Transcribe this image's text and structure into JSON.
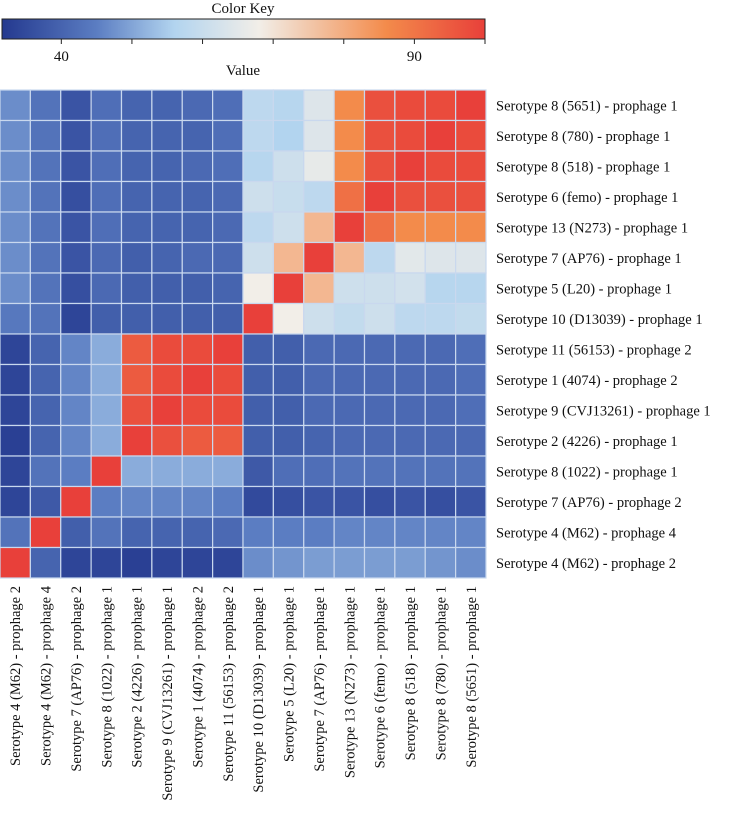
{
  "chart_data": {
    "type": "heatmap",
    "title": "Color Key",
    "colorbar": {
      "label": "Value",
      "range": [
        31.6,
        100
      ],
      "tick_values": [
        40,
        50,
        60,
        70,
        80,
        90,
        100
      ],
      "tick_labels": [
        {
          "value": 40,
          "text": "40"
        },
        {
          "value": 90,
          "text": "90"
        }
      ],
      "stops": [
        {
          "value": 31.6,
          "color": "#24398f"
        },
        {
          "value": 45,
          "color": "#5b7dc2"
        },
        {
          "value": 56,
          "color": "#b2d4ef"
        },
        {
          "value": 68,
          "color": "#f2eee8"
        },
        {
          "value": 86,
          "color": "#f38b4b"
        },
        {
          "value": 100,
          "color": "#e8403a"
        }
      ]
    },
    "rows": [
      "Serotype 8 (5651) - prophage 1",
      "Serotype 8 (780) - prophage 1",
      "Serotype 8 (518) - prophage 1",
      "Serotype 6 (femo) - prophage 1",
      "Serotype 13 (N273) - prophage 1",
      "Serotype 7 (AP76) - prophage 1",
      "Serotype 5 (L20) - prophage 1",
      "Serotype 10 (D13039) - prophage 1",
      "Serotype 11 (56153) - prophage 2",
      "Serotype 1 (4074) - prophage 2",
      "Serotype 9 (CVJ13261) - prophage 1",
      "Serotype 2 (4226) - prophage 1",
      "Serotype 8 (1022) - prophage 1",
      "Serotype 7 (AP76) - prophage 2",
      "Serotype 4 (M62) - prophage 4",
      "Serotype 4 (M62) - prophage 2"
    ],
    "columns": [
      "Serotype 4 (M62) - prophage 2",
      "Serotype 4 (M62) - prophage 4",
      "Serotype 7 (AP76) - prophage 2",
      "Serotype 8 (1022) - prophage 1",
      "Serotype 2 (4226) - prophage 1",
      "Serotype 9 (CVJ13261) - prophage 1",
      "Serotype 1 (4074) - prophage 2",
      "Serotype 11 (56153) - prophage 2",
      "Serotype 10 (D13039) - prophage 1",
      "Serotype 5 (L20) - prophage 1",
      "Serotype 7 (AP76) - prophage 1",
      "Serotype 13 (N273) - prophage 1",
      "Serotype 6 (femo) - prophage 1",
      "Serotype 8 (518) - prophage 1",
      "Serotype 8 (780) - prophage 1",
      "Serotype 8 (5651) - prophage 1"
    ],
    "values": [
      [
        47,
        43,
        37,
        42,
        40,
        40,
        41,
        42,
        58,
        57,
        64,
        86,
        97,
        98,
        98,
        100
      ],
      [
        47,
        43,
        37,
        42,
        40,
        40,
        40,
        42,
        58,
        56,
        64,
        86,
        97,
        98,
        100,
        98
      ],
      [
        47,
        43,
        37,
        42,
        40,
        40,
        41,
        42,
        57,
        61,
        66,
        86,
        97,
        100,
        98,
        98
      ],
      [
        47,
        43,
        36,
        42,
        40,
        40,
        40,
        41,
        61,
        60,
        58,
        91,
        100,
        97,
        97,
        97
      ],
      [
        47,
        43,
        37,
        42,
        40,
        40,
        40,
        41,
        58,
        61,
        78,
        100,
        91,
        86,
        86,
        86
      ],
      [
        47,
        43,
        37,
        41,
        39,
        40,
        41,
        41,
        61,
        78,
        100,
        78,
        58,
        65,
        64,
        64
      ],
      [
        47,
        43,
        36,
        41,
        39,
        39,
        39,
        40,
        68,
        100,
        78,
        61,
        61,
        62,
        57,
        57
      ],
      [
        44,
        43,
        34,
        39,
        39,
        39,
        39,
        39,
        100,
        68,
        61,
        59,
        61,
        58,
        58,
        59
      ],
      [
        34,
        40,
        46,
        51,
        95,
        98,
        98,
        100,
        39,
        39,
        41,
        41,
        41,
        41,
        41,
        42
      ],
      [
        34,
        40,
        46,
        51,
        95,
        98,
        100,
        98,
        39,
        39,
        41,
        41,
        41,
        41,
        41,
        42
      ],
      [
        34,
        40,
        46,
        51,
        97,
        100,
        98,
        98,
        39,
        39,
        41,
        41,
        41,
        41,
        41,
        42
      ],
      [
        33,
        40,
        46,
        51,
        100,
        97,
        95,
        95,
        39,
        39,
        40,
        41,
        41,
        41,
        41,
        41
      ],
      [
        34,
        43,
        45,
        100,
        51,
        51,
        51,
        51,
        38,
        42,
        42,
        43,
        43,
        43,
        43,
        43
      ],
      [
        34,
        38,
        100,
        45,
        46,
        46,
        46,
        45,
        35,
        36,
        37,
        37,
        36,
        37,
        36,
        37
      ],
      [
        43,
        100,
        39,
        43,
        40,
        40,
        40,
        41,
        45,
        45,
        45,
        46,
        46,
        46,
        46,
        46
      ],
      [
        100,
        40,
        34,
        34,
        33,
        34,
        34,
        34,
        47,
        48,
        49,
        49,
        49,
        49,
        48,
        47
      ]
    ]
  }
}
